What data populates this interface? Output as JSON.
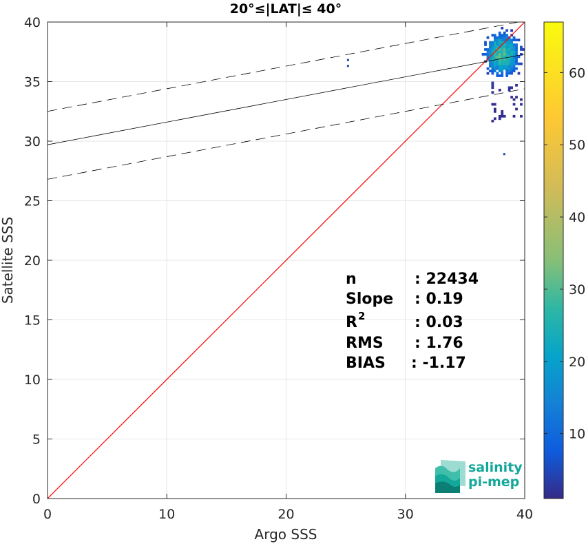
{
  "chart_data": {
    "type": "scatter",
    "title": "20°≤|LAT|≤ 40°",
    "xlabel": "Argo SSS",
    "ylabel": "Satellite SSS",
    "xlim": [
      0,
      40
    ],
    "ylim": [
      0,
      40
    ],
    "xticks": [
      0,
      10,
      20,
      30,
      40
    ],
    "yticks": [
      0,
      5,
      10,
      15,
      20,
      25,
      30,
      35,
      40
    ],
    "grid": true,
    "colorbar": {
      "min": 1,
      "max": 67,
      "ticks": [
        10,
        20,
        30,
        40,
        50,
        60
      ],
      "colormap": "parula"
    },
    "lines": {
      "one_to_one": {
        "color": "#ff0000",
        "from": [
          0,
          0
        ],
        "to": [
          40,
          40
        ]
      },
      "fit": {
        "style": "solid",
        "color": "#000000",
        "intercept": 29.7,
        "slope": 0.19
      },
      "upper_bound": {
        "style": "dashed",
        "color": "#000000",
        "intercept": 32.5,
        "slope": 0.19
      },
      "lower_bound": {
        "style": "dashed",
        "color": "#000000",
        "intercept": 26.8,
        "slope": 0.19
      }
    },
    "stats": {
      "n_label": "n",
      "n_value": ": 22434",
      "slope_label": "Slope",
      "slope_value": ": 0.19",
      "r2_label": "R",
      "r2_sup": "2",
      "r2_value": ": 0.03",
      "rms_label": "RMS",
      "rms_value": ": 1.76",
      "bias_label": "BIAS",
      "bias_value": ": -1.17"
    }
  },
  "logo": {
    "line1": "salinity",
    "line2": "pi-mep"
  }
}
